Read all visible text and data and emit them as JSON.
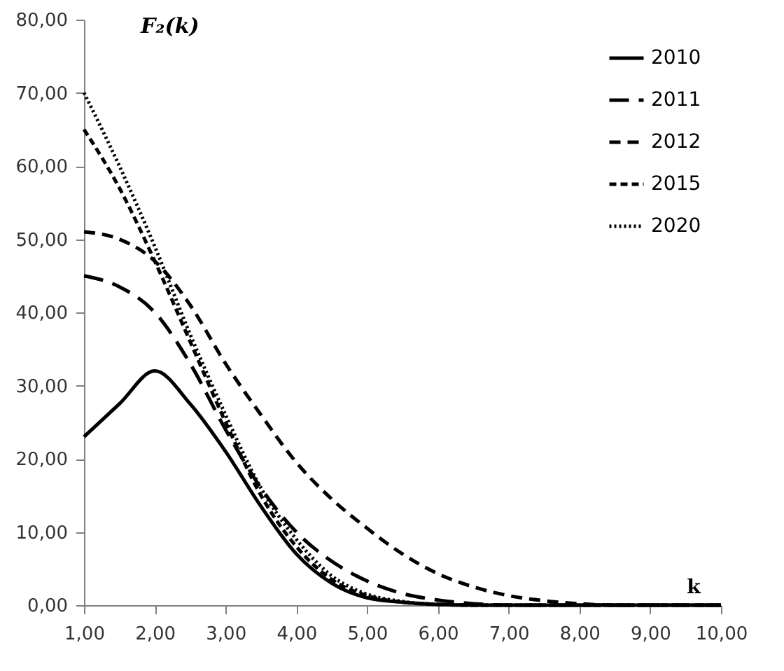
{
  "chart_data": {
    "type": "line",
    "ylabel": "F₂(k)",
    "xlabel": "k",
    "x": [
      1,
      1.5,
      2,
      2.5,
      3,
      3.5,
      4,
      4.5,
      5,
      5.5,
      6,
      6.5,
      7,
      7.5,
      8,
      8.5,
      9,
      9.5,
      10
    ],
    "series": [
      {
        "name": "2010",
        "color": "#000000",
        "line_style": "solid",
        "values": [
          23,
          27.5,
          32,
          27.5,
          21,
          13.5,
          7,
          3,
          1,
          0.4,
          0.1,
          0,
          0,
          0,
          0,
          0,
          0,
          0,
          0
        ]
      },
      {
        "name": "2011",
        "color": "#000000",
        "line_style": "dashed",
        "values": [
          45,
          43.5,
          40,
          33,
          24,
          16,
          10,
          6,
          3.3,
          1.6,
          0.7,
          0.2,
          0,
          0,
          0,
          0,
          0,
          0,
          0
        ]
      },
      {
        "name": "2012",
        "color": "#000000",
        "line_style": "dashed",
        "values": [
          51,
          50,
          47,
          41,
          33,
          26,
          19.5,
          14.5,
          10.5,
          7,
          4.3,
          2.5,
          1.3,
          0.6,
          0.2,
          0,
          0,
          0,
          0
        ]
      },
      {
        "name": "2015",
        "color": "#000000",
        "line_style": "dashed",
        "values": [
          65,
          57,
          47,
          36,
          25,
          15,
          8,
          3.5,
          1.3,
          0.4,
          0.1,
          0,
          0,
          0,
          0,
          0,
          0,
          0,
          0
        ]
      },
      {
        "name": "2020",
        "color": "#000000",
        "line_style": "dotted",
        "values": [
          70,
          60,
          49,
          37,
          26,
          16,
          9,
          4,
          1.5,
          0.5,
          0.1,
          0,
          0,
          0,
          0,
          0,
          0,
          0,
          0
        ]
      }
    ],
    "xlim": [
      1,
      10
    ],
    "xticks": [
      {
        "value": 1,
        "label": "1,00"
      },
      {
        "value": 2,
        "label": "2,00"
      },
      {
        "value": 3,
        "label": "3,00"
      },
      {
        "value": 4,
        "label": "4,00"
      },
      {
        "value": 5,
        "label": "5,00"
      },
      {
        "value": 6,
        "label": "6,00"
      },
      {
        "value": 7,
        "label": "7,00"
      },
      {
        "value": 8,
        "label": "8,00"
      },
      {
        "value": 9,
        "label": "9,00"
      },
      {
        "value": 10,
        "label": "10,00"
      }
    ],
    "ylim": [
      0,
      80
    ],
    "yticks": [
      {
        "value": 0,
        "label": "0,00"
      },
      {
        "value": 10,
        "label": "10,00"
      },
      {
        "value": 20,
        "label": "20,00"
      },
      {
        "value": 30,
        "label": "30,00"
      },
      {
        "value": 40,
        "label": "40,00"
      },
      {
        "value": 50,
        "label": "50,00"
      },
      {
        "value": 60,
        "label": "60,00"
      },
      {
        "value": 70,
        "label": "70,00"
      },
      {
        "value": 80,
        "label": "80,00"
      }
    ],
    "grid": false,
    "legend": "top right",
    "marker": "none"
  }
}
